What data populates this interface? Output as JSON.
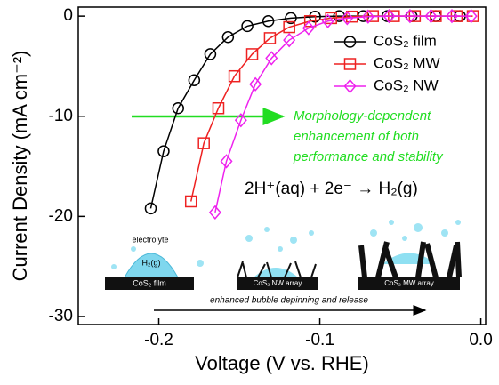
{
  "chart_data": {
    "type": "line",
    "xlabel": "Voltage (V vs. RHE)",
    "ylabel": "Current Density (mA cm⁻²)",
    "xlim": [
      -0.25,
      0.003
    ],
    "ylim": [
      -30.8,
      0.9
    ],
    "xticks": [
      -0.2,
      -0.1,
      {
        "value": 0,
        "label": "0.0"
      }
    ],
    "yticks": [
      0,
      -10,
      -20,
      -30
    ],
    "legend": "upper-right",
    "series": [
      {
        "name": "CoS₂ film",
        "color": "#000000",
        "marker": "circle",
        "x": [
          -0.205,
          -0.197,
          -0.188,
          -0.178,
          -0.168,
          -0.157,
          -0.145,
          -0.132,
          -0.118,
          -0.103,
          -0.088,
          -0.073,
          -0.058,
          -0.043,
          -0.028,
          -0.013
        ],
        "values": [
          -19.2,
          -13.5,
          -9.2,
          -6.4,
          -3.8,
          -2.1,
          -1.0,
          -0.5,
          -0.2,
          -0.05,
          0,
          0,
          0,
          0,
          0,
          0
        ]
      },
      {
        "name": "CoS₂ MW",
        "color": "#ee2222",
        "marker": "square",
        "x": [
          -0.18,
          -0.172,
          -0.163,
          -0.153,
          -0.142,
          -0.131,
          -0.119,
          -0.106,
          -0.093,
          -0.08,
          -0.067,
          -0.054,
          -0.041,
          -0.028,
          -0.015,
          -0.005
        ],
        "values": [
          -18.5,
          -12.7,
          -9.2,
          -6.0,
          -3.8,
          -2.2,
          -1.1,
          -0.5,
          -0.2,
          -0.05,
          0,
          0,
          0,
          0,
          0,
          0
        ]
      },
      {
        "name": "CoS₂ NW",
        "color": "#ee22ee",
        "marker": "diamond",
        "x": [
          -0.165,
          -0.158,
          -0.149,
          -0.14,
          -0.13,
          -0.119,
          -0.107,
          -0.095,
          -0.083,
          -0.07,
          -0.057,
          -0.044,
          -0.031,
          -0.018,
          -0.006
        ],
        "values": [
          -19.6,
          -14.5,
          -10.4,
          -6.8,
          -4.2,
          -2.4,
          -1.2,
          -0.5,
          -0.2,
          -0.05,
          0,
          0,
          0,
          0,
          0
        ]
      }
    ],
    "annotations": [
      "Morphology-dependent",
      "enhancement of both",
      "performance and stability"
    ],
    "equation": "2H⁺(aq) + 2e⁻ → H₂(g)",
    "inset_labels": [
      "electrolyte",
      "H₂(g)",
      "CoS₂ film",
      "CoS₂ NW array",
      "CoS₂ MW array",
      "enhanced bubble depinning and release"
    ]
  }
}
